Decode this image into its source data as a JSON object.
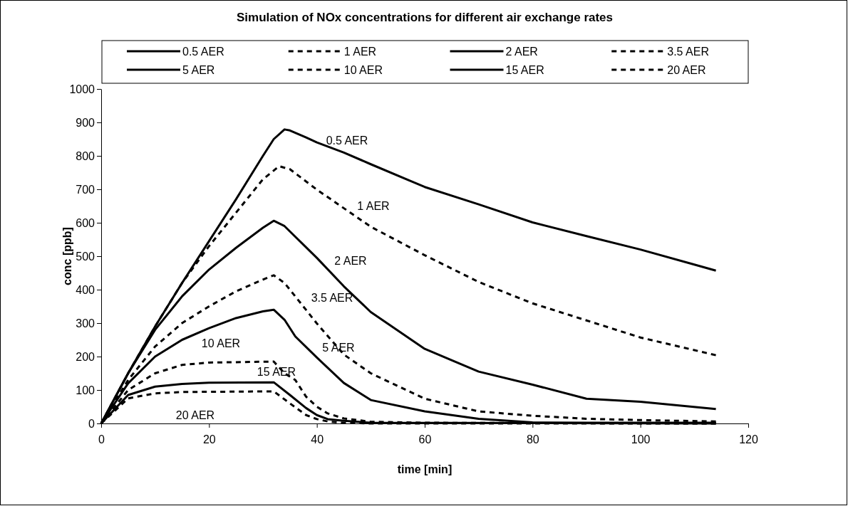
{
  "chart_data": {
    "type": "line",
    "title": "Simulation of NOx concentrations for different air exchange rates",
    "xlabel": "time [min]",
    "ylabel": "conc [ppb]",
    "xlim": [
      0,
      120
    ],
    "xticks": [
      0,
      20,
      40,
      60,
      80,
      100,
      120
    ],
    "ylim": [
      0,
      1000
    ],
    "yticks": [
      0,
      100,
      200,
      300,
      400,
      500,
      600,
      700,
      800,
      900,
      1000
    ],
    "grid": false,
    "legend": "top",
    "marker": "none",
    "series": [
      {
        "name": "0.5 AER",
        "color": "#000000",
        "line_style": "solid",
        "x": [
          0,
          5,
          10,
          15,
          20,
          25,
          30,
          32,
          34,
          35,
          38,
          40,
          45,
          50,
          60,
          70,
          80,
          90,
          100,
          110,
          114
        ],
        "values": [
          0,
          150,
          290,
          420,
          545,
          670,
          800,
          850,
          879,
          876,
          855,
          840,
          810,
          775,
          707,
          655,
          601,
          560,
          520,
          475,
          457
        ]
      },
      {
        "name": "1 AER",
        "color": "#000000",
        "line_style": "dashed",
        "x": [
          0,
          5,
          10,
          15,
          20,
          25,
          30,
          33,
          35,
          40,
          50,
          60,
          70,
          80,
          90,
          100,
          114
        ],
        "values": [
          0,
          150,
          290,
          420,
          530,
          630,
          730,
          769,
          760,
          699,
          588,
          503,
          423,
          359,
          308,
          257,
          204
        ]
      },
      {
        "name": "2 AER",
        "color": "#000000",
        "line_style": "solid",
        "x": [
          0,
          5,
          10,
          15,
          20,
          25,
          30,
          32,
          34,
          40,
          45,
          50,
          60,
          70,
          80,
          90,
          100,
          114
        ],
        "values": [
          0,
          150,
          280,
          380,
          460,
          525,
          585,
          606,
          590,
          495,
          410,
          333,
          223,
          155,
          116,
          74,
          65,
          43
        ]
      },
      {
        "name": "3.5 AER",
        "color": "#000000",
        "line_style": "dashed",
        "x": [
          0,
          5,
          10,
          15,
          20,
          25,
          30,
          32,
          34,
          40,
          45,
          50,
          60,
          70,
          80,
          90,
          100,
          114
        ],
        "values": [
          0,
          130,
          230,
          300,
          350,
          395,
          430,
          443,
          420,
          299,
          206,
          150,
          74,
          36,
          23,
          14,
          10,
          6
        ]
      },
      {
        "name": "5 AER",
        "color": "#000000",
        "line_style": "solid",
        "x": [
          0,
          5,
          10,
          15,
          20,
          25,
          30,
          32,
          34,
          36,
          40,
          45,
          50,
          60,
          70,
          80,
          90,
          114
        ],
        "values": [
          0,
          120,
          200,
          250,
          285,
          315,
          335,
          340,
          310,
          260,
          197,
          121,
          70,
          36,
          14,
          3,
          2,
          2
        ]
      },
      {
        "name": "10 AER",
        "color": "#000000",
        "line_style": "dashed",
        "x": [
          0,
          5,
          10,
          15,
          20,
          32,
          34,
          36,
          38,
          40,
          42,
          45,
          50,
          60,
          114
        ],
        "values": [
          0,
          100,
          150,
          175,
          182,
          185,
          150,
          130,
          80,
          50,
          30,
          15,
          5,
          2,
          0
        ]
      },
      {
        "name": "15 AER",
        "color": "#000000",
        "line_style": "solid",
        "x": [
          0,
          5,
          10,
          15,
          20,
          32,
          35,
          38,
          40,
          42,
          45,
          50,
          114
        ],
        "values": [
          0,
          85,
          110,
          118,
          122,
          123,
          85,
          46,
          25,
          13,
          8,
          2,
          0
        ]
      },
      {
        "name": "20 AER",
        "color": "#000000",
        "line_style": "dashed",
        "x": [
          0,
          5,
          10,
          15,
          32,
          35,
          38,
          40,
          42,
          45,
          50,
          114
        ],
        "values": [
          0,
          75,
          90,
          94,
          96,
          60,
          25,
          13,
          6,
          2,
          0,
          0
        ]
      }
    ],
    "annotations": [
      "0.5 AER",
      "1 AER",
      "2 AER",
      "3.5 AER",
      "5 AER",
      "10 AER",
      "15 AER",
      "20 AER"
    ]
  }
}
